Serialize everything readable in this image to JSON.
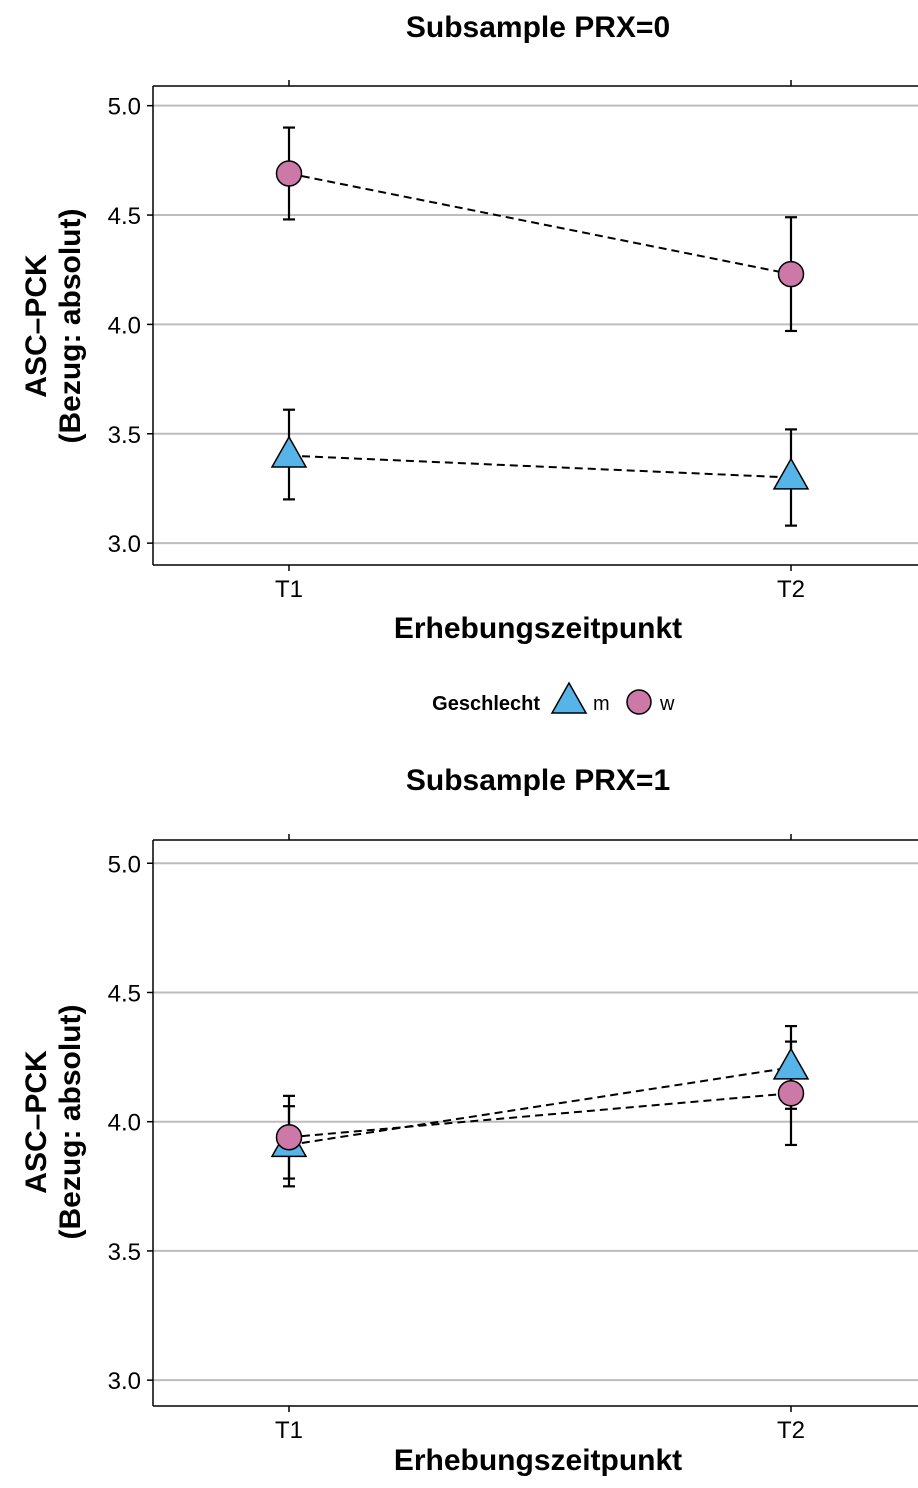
{
  "legend": {
    "title": "Geschlecht",
    "items": [
      {
        "label": "m",
        "shape": "triangle",
        "color": "#56B4E9"
      },
      {
        "label": "w",
        "shape": "circle",
        "color": "#CC79A7"
      }
    ]
  },
  "chart_data": [
    {
      "type": "line",
      "title": "Subsample PRX=0",
      "xlabel": "Erhebungszeitpunkt",
      "ylabel_line1": "ASC–PCK",
      "ylabel_line2": "(Bezug: absolut)",
      "categories": [
        "T1",
        "T2"
      ],
      "ylim": [
        2.9,
        5.09
      ],
      "yticks": [
        3.0,
        3.5,
        4.0,
        4.5,
        5.0
      ],
      "ytick_labels": [
        "3.0",
        "3.5",
        "4.0",
        "4.5",
        "5.0"
      ],
      "grid": "horizontal",
      "series": [
        {
          "name": "m",
          "shape": "triangle",
          "color": "#56B4E9",
          "values": [
            3.4,
            3.3
          ],
          "lower": [
            3.2,
            3.08
          ],
          "upper": [
            3.61,
            3.52
          ]
        },
        {
          "name": "w",
          "shape": "circle",
          "color": "#CC79A7",
          "values": [
            4.69,
            4.23
          ],
          "lower": [
            4.48,
            3.97
          ],
          "upper": [
            4.9,
            4.49
          ]
        }
      ]
    },
    {
      "type": "line",
      "title": "Subsample PRX=1",
      "xlabel": "Erhebungszeitpunkt",
      "ylabel_line1": "ASC–PCK",
      "ylabel_line2": "(Bezug: absolut)",
      "categories": [
        "T1",
        "T2"
      ],
      "ylim": [
        2.9,
        5.09
      ],
      "yticks": [
        3.0,
        3.5,
        4.0,
        4.5,
        5.0
      ],
      "ytick_labels": [
        "3.0",
        "3.5",
        "4.0",
        "4.5",
        "5.0"
      ],
      "grid": "horizontal",
      "series": [
        {
          "name": "m",
          "shape": "triangle",
          "color": "#56B4E9",
          "values": [
            3.91,
            4.21
          ],
          "lower": [
            3.75,
            4.05
          ],
          "upper": [
            4.06,
            4.37
          ]
        },
        {
          "name": "w",
          "shape": "circle",
          "color": "#CC79A7",
          "values": [
            3.94,
            4.11
          ],
          "lower": [
            3.78,
            3.91
          ],
          "upper": [
            4.1,
            4.31
          ]
        }
      ]
    }
  ]
}
